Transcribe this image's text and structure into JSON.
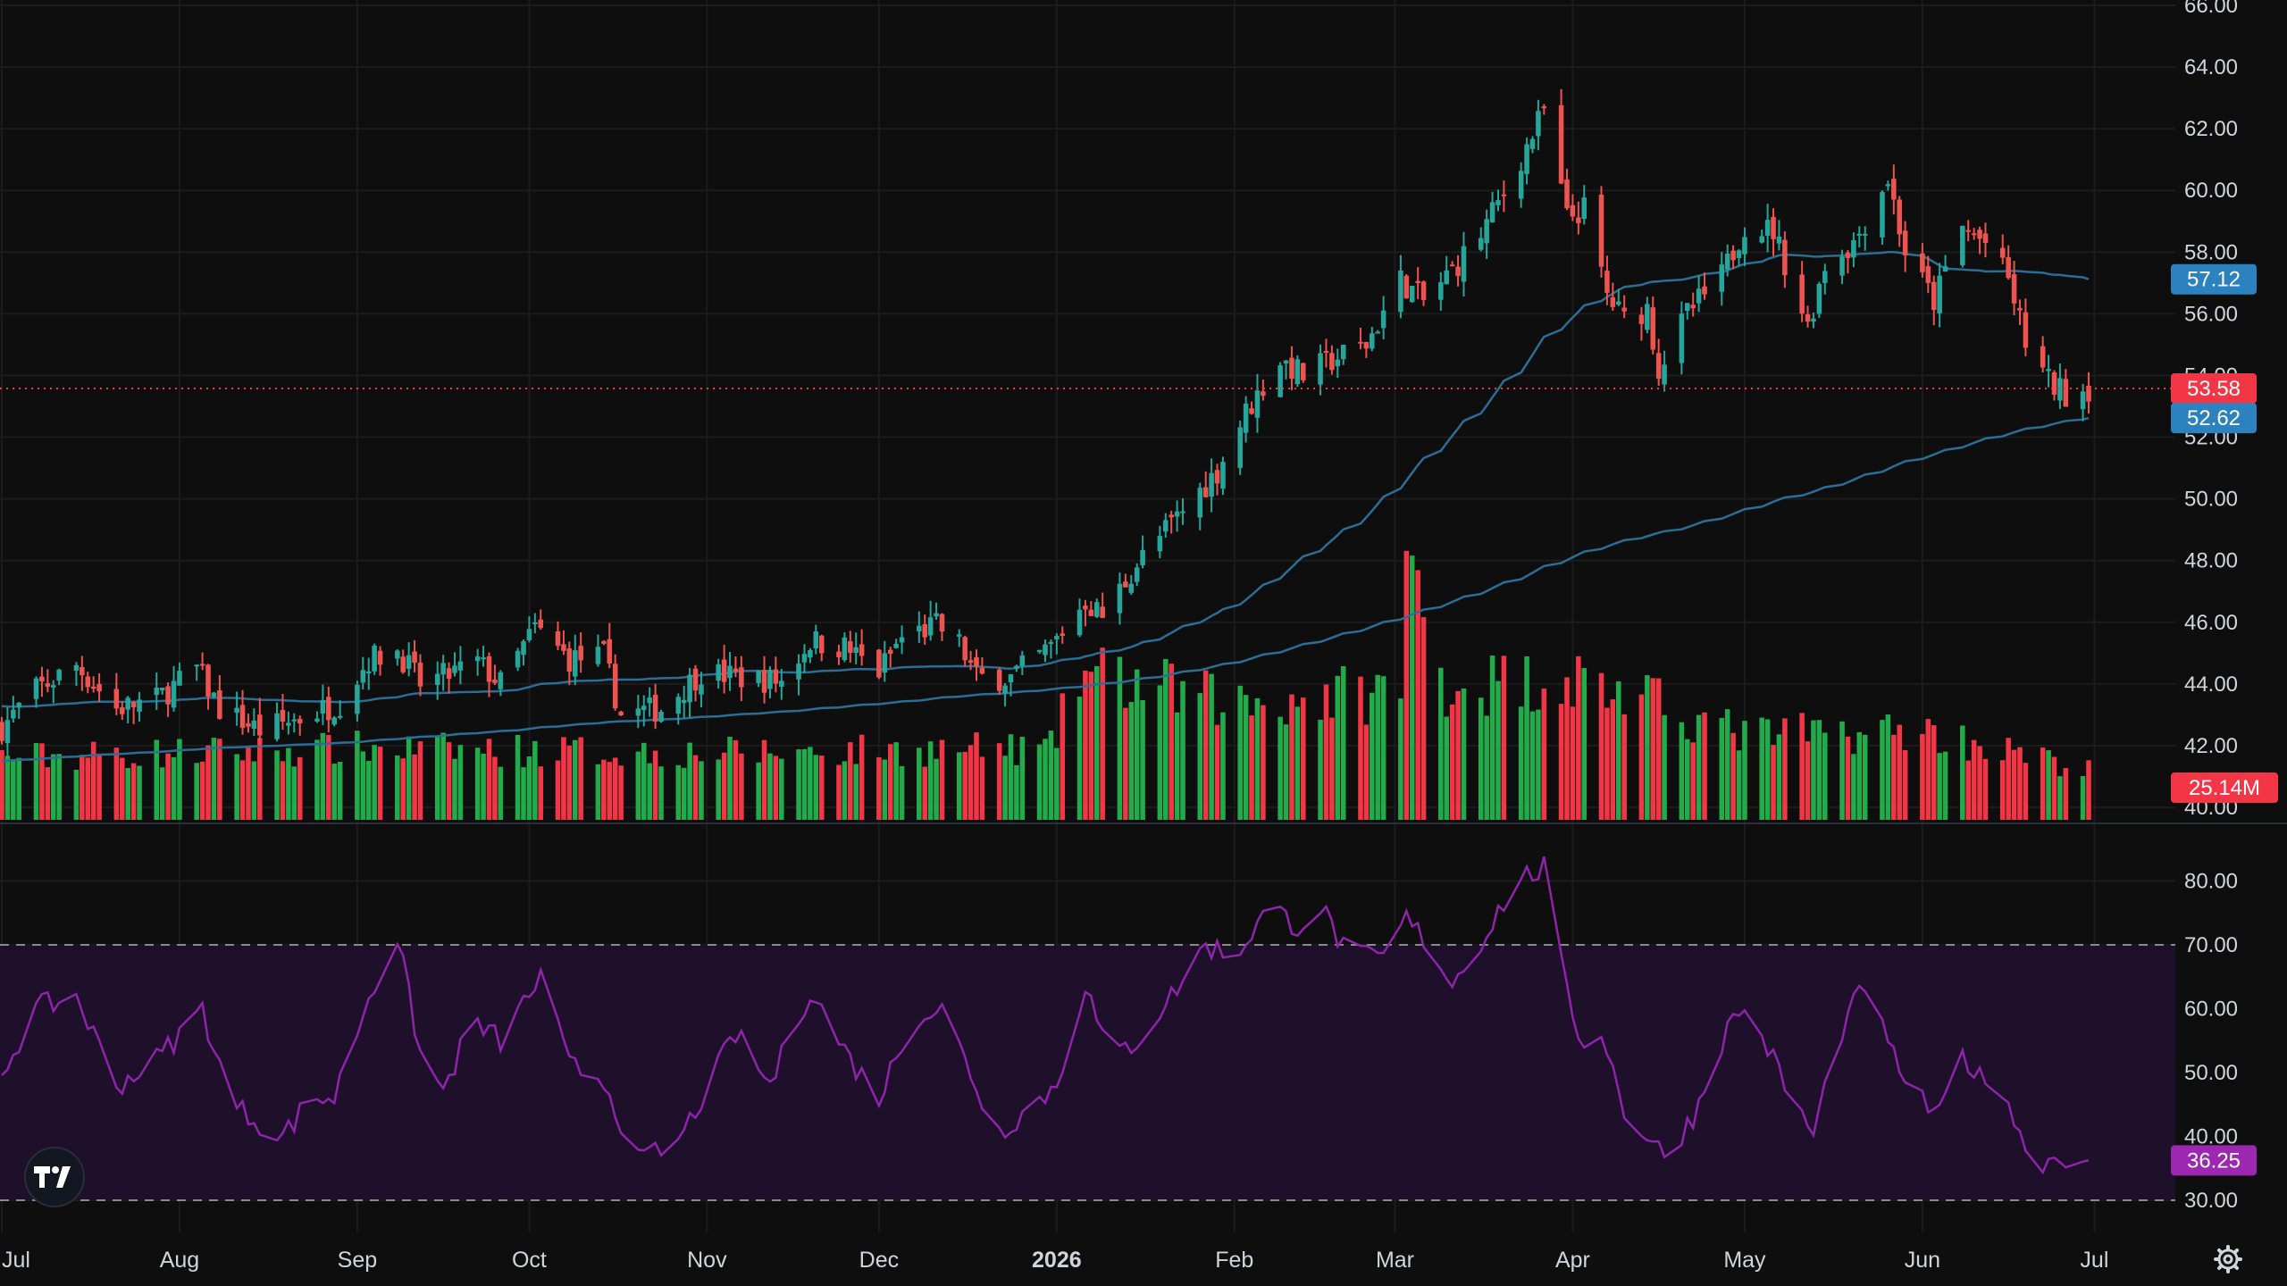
{
  "chart_data": {
    "type": "candlestick",
    "colors": {
      "background": "#0e0e0e",
      "grid": "#1c1c1c",
      "up": "#26a69a",
      "down": "#ef5350",
      "volume_up": "#22ab4b",
      "volume_down": "#f23645",
      "sma": "#2b6d95",
      "rsi_line": "#8e24aa",
      "rsi_band": "#1e0f2b",
      "text": "#d1d4dc",
      "price_badge": "#f23645",
      "sma_badge": "#2c82be",
      "rsi_badge": "#9c27b0"
    },
    "x_axis": {
      "month_labels": [
        "Jul",
        "Aug",
        "Sep",
        "Oct",
        "Nov",
        "Dec",
        "2026",
        "Feb",
        "Mar",
        "Apr",
        "May",
        "Jun",
        "Jul"
      ],
      "bold_label": "2026"
    },
    "price_axis": {
      "ticks": [
        "40.00",
        "42.00",
        "44.00",
        "46.00",
        "48.00",
        "50.00",
        "52.00",
        "54.00",
        "56.00",
        "58.00",
        "60.00",
        "62.00",
        "64.00",
        "66.00"
      ],
      "ylim": [
        40,
        66
      ]
    },
    "rsi_axis": {
      "ticks": [
        "30.00",
        "40.00",
        "50.00",
        "60.00",
        "70.00",
        "80.00"
      ],
      "ylim": [
        28,
        85
      ],
      "overbought": 70,
      "oversold": 30
    },
    "badges": {
      "last_price": "53.58",
      "sma_short": "57.12",
      "sma_long": "52.62",
      "volume": "25.14M",
      "rsi": "36.25"
    },
    "last_values": {
      "last_price": 53.58,
      "sma_short": 57.12,
      "sma_long": 52.62,
      "rsi": 36.25
    },
    "price_anchors": [
      [
        "2025-07-01",
        42.6
      ],
      [
        "2025-07-07",
        43.8
      ],
      [
        "2025-07-14",
        44.6
      ],
      [
        "2025-07-21",
        43.2
      ],
      [
        "2025-07-28",
        43.5
      ],
      [
        "2025-08-04",
        44.5
      ],
      [
        "2025-08-08",
        43.2
      ],
      [
        "2025-08-15",
        42.5
      ],
      [
        "2025-08-22",
        42.9
      ],
      [
        "2025-08-29",
        43.4
      ],
      [
        "2025-09-03",
        44.8
      ],
      [
        "2025-09-08",
        45.1
      ],
      [
        "2025-09-12",
        44.0
      ],
      [
        "2025-09-17",
        44.3
      ],
      [
        "2025-09-22",
        44.7
      ],
      [
        "2025-09-26",
        44.0
      ],
      [
        "2025-10-02",
        45.8
      ],
      [
        "2025-10-08",
        44.8
      ],
      [
        "2025-10-14",
        44.9
      ],
      [
        "2025-10-17",
        43.0
      ],
      [
        "2025-10-24",
        43.2
      ],
      [
        "2025-10-31",
        44.4
      ],
      [
        "2025-11-07",
        44.2
      ],
      [
        "2025-11-14",
        44.1
      ],
      [
        "2025-11-19",
        45.4
      ],
      [
        "2025-11-25",
        45.2
      ],
      [
        "2025-12-01",
        44.4
      ],
      [
        "2025-12-05",
        45.5
      ],
      [
        "2025-12-11",
        45.9
      ],
      [
        "2025-12-15",
        45.3
      ],
      [
        "2025-12-18",
        44.2
      ],
      [
        "2025-12-24",
        44.2
      ],
      [
        "2025-12-31",
        45.2
      ],
      [
        "2026-01-06",
        46.7
      ],
      [
        "2026-01-09",
        46.2
      ],
      [
        "2026-01-15",
        47.9
      ],
      [
        "2026-01-22",
        49.4
      ],
      [
        "2026-01-29",
        50.9
      ],
      [
        "2026-02-03",
        52.8
      ],
      [
        "2026-02-09",
        54.5
      ],
      [
        "2026-02-13",
        54.0
      ],
      [
        "2026-02-19",
        54.6
      ],
      [
        "2026-02-24",
        55.0
      ],
      [
        "2026-03-02",
        57.1
      ],
      [
        "2026-03-06",
        56.4
      ],
      [
        "2026-03-11",
        57.4
      ],
      [
        "2026-03-16",
        58.6
      ],
      [
        "2026-03-20",
        59.9
      ],
      [
        "2026-03-25",
        61.8
      ],
      [
        "2026-03-27",
        62.6
      ],
      [
        "2026-03-31",
        59.1
      ],
      [
        "2026-04-03",
        59.4
      ],
      [
        "2026-04-07",
        56.6
      ],
      [
        "2026-04-10",
        55.8
      ],
      [
        "2026-04-14",
        56.2
      ],
      [
        "2026-04-16",
        54.2
      ],
      [
        "2026-04-21",
        56.0
      ],
      [
        "2026-04-27",
        57.2
      ],
      [
        "2026-05-01",
        58.9
      ],
      [
        "2026-05-06",
        58.7
      ],
      [
        "2026-05-12",
        55.6
      ],
      [
        "2026-05-15",
        57.6
      ],
      [
        "2026-05-20",
        58.3
      ],
      [
        "2026-05-26",
        60.4
      ],
      [
        "2026-05-29",
        58.0
      ],
      [
        "2026-06-03",
        56.4
      ],
      [
        "2026-06-08",
        58.8
      ],
      [
        "2026-06-12",
        58.3
      ],
      [
        "2026-06-16",
        57.1
      ],
      [
        "2026-06-19",
        55.1
      ],
      [
        "2026-06-23",
        53.8
      ],
      [
        "2026-06-26",
        53.4
      ],
      [
        "2026-06-30",
        53.6
      ]
    ],
    "volume_anchors": [
      [
        "2025-07-01",
        14.0
      ],
      [
        "2025-09-01",
        16.0
      ],
      [
        "2025-11-01",
        15.0
      ],
      [
        "2025-12-31",
        16.0
      ],
      [
        "2026-01-05",
        33.0
      ],
      [
        "2026-02-01",
        26.0
      ],
      [
        "2026-03-02",
        29.0
      ],
      [
        "2026-03-03",
        58.0
      ],
      [
        "2026-03-10",
        30.0
      ],
      [
        "2026-04-01",
        32.0
      ],
      [
        "2026-05-01",
        19.0
      ],
      [
        "2026-06-01",
        20.0
      ],
      [
        "2026-06-30",
        11.0
      ]
    ],
    "volume_max": 62,
    "rsi_anchors": [
      [
        "2025-07-01",
        50
      ],
      [
        "2025-07-07",
        60
      ],
      [
        "2025-07-14",
        62
      ],
      [
        "2025-07-21",
        48
      ],
      [
        "2025-07-28",
        52
      ],
      [
        "2025-08-05",
        60
      ],
      [
        "2025-08-10",
        45
      ],
      [
        "2025-08-19",
        40
      ],
      [
        "2025-08-24",
        46
      ],
      [
        "2025-08-28",
        46
      ],
      [
        "2025-09-03",
        62
      ],
      [
        "2025-09-08",
        71
      ],
      [
        "2025-09-12",
        53
      ],
      [
        "2025-09-16",
        47
      ],
      [
        "2025-09-21",
        58
      ],
      [
        "2025-09-26",
        55
      ],
      [
        "2025-10-03",
        65
      ],
      [
        "2025-10-08",
        51
      ],
      [
        "2025-10-14",
        49
      ],
      [
        "2025-10-20",
        36
      ],
      [
        "2025-10-27",
        39
      ],
      [
        "2025-11-06",
        56
      ],
      [
        "2025-11-12",
        48
      ],
      [
        "2025-11-19",
        63
      ],
      [
        "2025-11-26",
        52
      ],
      [
        "2025-12-01",
        46
      ],
      [
        "2025-12-07",
        59
      ],
      [
        "2025-12-12",
        60
      ],
      [
        "2025-12-18",
        48
      ],
      [
        "2025-12-21",
        40
      ],
      [
        "2026-01-01",
        48
      ],
      [
        "2026-01-06",
        64
      ],
      [
        "2026-01-10",
        52
      ],
      [
        "2026-01-15",
        55
      ],
      [
        "2026-01-21",
        62
      ],
      [
        "2026-01-27",
        70
      ],
      [
        "2026-02-01",
        68
      ],
      [
        "2026-02-07",
        76
      ],
      [
        "2026-02-12",
        73
      ],
      [
        "2026-02-16",
        76
      ],
      [
        "2026-02-21",
        68
      ],
      [
        "2026-02-27",
        68
      ],
      [
        "2026-03-03",
        74
      ],
      [
        "2026-03-07",
        70
      ],
      [
        "2026-03-11",
        64
      ],
      [
        "2026-03-17",
        72
      ],
      [
        "2026-03-22",
        80
      ],
      [
        "2026-03-27",
        82
      ],
      [
        "2026-03-31",
        62
      ],
      [
        "2026-04-03",
        54
      ],
      [
        "2026-04-06",
        57
      ],
      [
        "2026-04-10",
        44
      ],
      [
        "2026-04-14",
        40
      ],
      [
        "2026-04-17",
        37
      ],
      [
        "2026-04-22",
        43
      ],
      [
        "2026-04-27",
        55
      ],
      [
        "2026-04-30",
        60
      ],
      [
        "2026-05-04",
        56
      ],
      [
        "2026-05-08",
        48
      ],
      [
        "2026-05-13",
        40
      ],
      [
        "2026-05-17",
        55
      ],
      [
        "2026-05-22",
        64
      ],
      [
        "2026-05-26",
        54
      ],
      [
        "2026-05-31",
        46
      ],
      [
        "2026-06-04",
        43
      ],
      [
        "2026-06-08",
        53
      ],
      [
        "2026-06-11",
        49
      ],
      [
        "2026-06-15",
        48
      ],
      [
        "2026-06-18",
        40
      ],
      [
        "2026-06-21",
        36
      ],
      [
        "2026-06-26",
        37
      ],
      [
        "2026-06-30",
        36.25
      ]
    ],
    "date_range": [
      "2025-07-01",
      "2026-06-30"
    ]
  }
}
